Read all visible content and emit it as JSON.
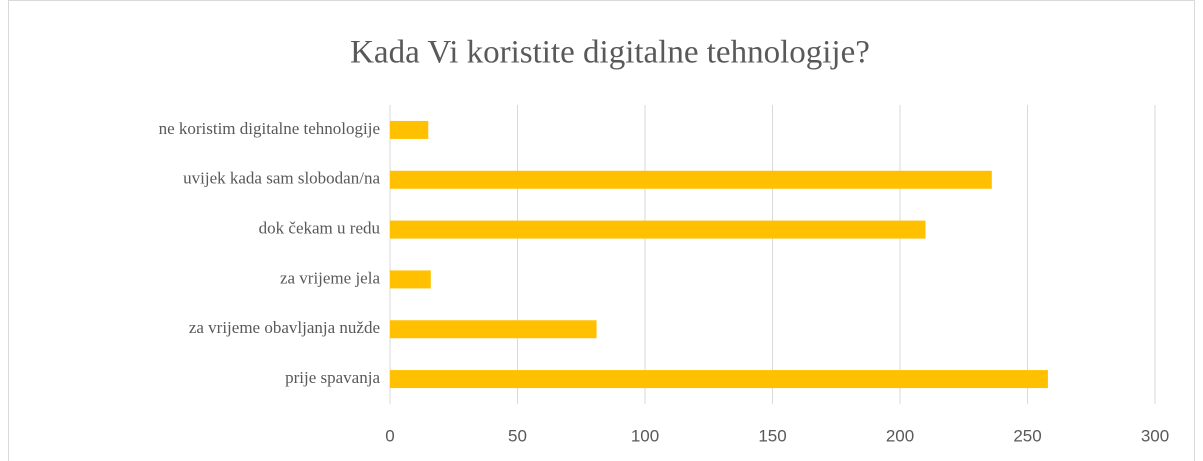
{
  "chart_data": {
    "type": "bar",
    "orientation": "horizontal",
    "title": "Kada Vi koristite digitalne tehnologije?",
    "categories": [
      "ne koristim digitalne tehnologije",
      "uvijek kada sam slobodan/na",
      "dok čekam u redu",
      "za vrijeme jela",
      "za vrijeme obavljanja nužde",
      "prije spavanja"
    ],
    "values": [
      15,
      236,
      210,
      16,
      81,
      258
    ],
    "color": "#ffc000",
    "xlim": [
      0,
      300
    ],
    "xticks": [
      0,
      50,
      100,
      150,
      200,
      250,
      300
    ],
    "grid": true
  }
}
